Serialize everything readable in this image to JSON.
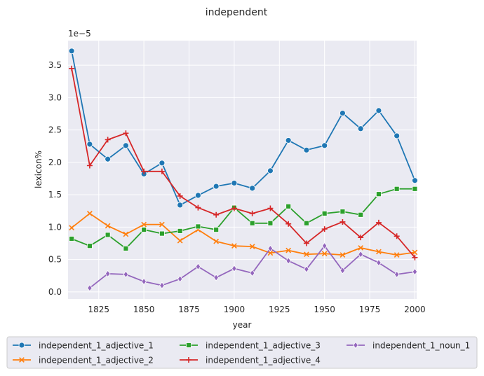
{
  "chart_data": {
    "type": "line",
    "title": "independent",
    "xlabel": "year",
    "ylabel": "lexicon%",
    "y_offset_label": "1e−5",
    "xlim": [
      1808,
      2001
    ],
    "ylim": [
      -0.11,
      3.88
    ],
    "x_ticks": [
      1825,
      1850,
      1875,
      1900,
      1925,
      1950,
      1975,
      2000
    ],
    "y_ticks": [
      0.0,
      0.5,
      1.0,
      1.5,
      2.0,
      2.5,
      3.0,
      3.5
    ],
    "y_tick_labels": [
      "0.0",
      "0.5",
      "1.0",
      "1.5",
      "2.0",
      "2.5",
      "3.0",
      "3.5"
    ],
    "grid": true,
    "legend_position": "bottom",
    "series": [
      {
        "name": "independent_1_adjective_1",
        "color": "#1f77b4",
        "marker": "circle",
        "x": [
          1810,
          1820,
          1830,
          1840,
          1850,
          1860,
          1870,
          1880,
          1890,
          1900,
          1910,
          1920,
          1930,
          1940,
          1950,
          1960,
          1970,
          1980,
          1990,
          2000
        ],
        "y": [
          3.72,
          2.28,
          2.05,
          2.26,
          1.82,
          1.99,
          1.34,
          1.49,
          1.63,
          1.68,
          1.6,
          1.87,
          2.34,
          2.19,
          2.26,
          2.76,
          2.52,
          2.8,
          2.41,
          1.72
        ]
      },
      {
        "name": "independent_1_adjective_2",
        "color": "#ff7f0e",
        "marker": "x",
        "x": [
          1810,
          1820,
          1830,
          1840,
          1850,
          1860,
          1870,
          1880,
          1890,
          1900,
          1910,
          1920,
          1930,
          1940,
          1950,
          1960,
          1970,
          1980,
          1990,
          2000
        ],
        "y": [
          0.99,
          1.21,
          1.02,
          0.89,
          1.04,
          1.04,
          0.79,
          0.96,
          0.78,
          0.71,
          0.7,
          0.6,
          0.64,
          0.58,
          0.59,
          0.57,
          0.68,
          0.62,
          0.57,
          0.61
        ]
      },
      {
        "name": "independent_1_adjective_3",
        "color": "#2ca02c",
        "marker": "square",
        "x": [
          1810,
          1820,
          1830,
          1840,
          1850,
          1860,
          1870,
          1880,
          1890,
          1900,
          1910,
          1920,
          1930,
          1940,
          1950,
          1960,
          1970,
          1980,
          1990,
          2000
        ],
        "y": [
          0.82,
          0.71,
          0.88,
          0.67,
          0.96,
          0.9,
          0.94,
          1.01,
          0.96,
          1.3,
          1.06,
          1.06,
          1.32,
          1.06,
          1.21,
          1.24,
          1.19,
          1.51,
          1.59,
          1.59
        ]
      },
      {
        "name": "independent_1_adjective_4",
        "color": "#d62728",
        "marker": "plus",
        "x": [
          1810,
          1820,
          1830,
          1840,
          1850,
          1860,
          1870,
          1880,
          1890,
          1900,
          1910,
          1920,
          1930,
          1940,
          1950,
          1960,
          1970,
          1980,
          1990,
          2000
        ],
        "y": [
          3.45,
          1.95,
          2.35,
          2.45,
          1.86,
          1.86,
          1.48,
          1.3,
          1.19,
          1.29,
          1.21,
          1.29,
          1.05,
          0.75,
          0.97,
          1.08,
          0.84,
          1.07,
          0.86,
          0.53
        ]
      },
      {
        "name": "independent_1_noun_1",
        "color": "#9467bd",
        "marker": "diamond",
        "x": [
          1820,
          1830,
          1840,
          1850,
          1860,
          1870,
          1880,
          1890,
          1900,
          1910,
          1920,
          1930,
          1940,
          1950,
          1960,
          1970,
          1980,
          1990,
          2000
        ],
        "y": [
          0.06,
          0.28,
          0.27,
          0.16,
          0.1,
          0.2,
          0.39,
          0.22,
          0.36,
          0.29,
          0.67,
          0.48,
          0.35,
          0.71,
          0.33,
          0.58,
          0.45,
          0.27,
          0.31
        ]
      }
    ]
  }
}
